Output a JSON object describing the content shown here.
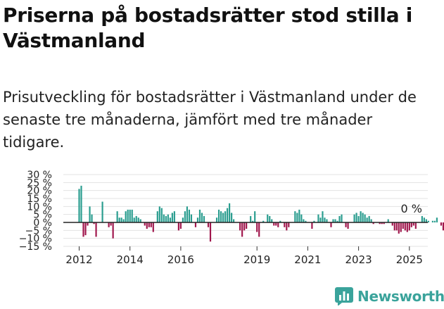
{
  "title": "Priserna på bostadsrätter stod stilla i Västmanland",
  "subtitle": "Prisutveckling för bostadsrätter i Västmanland under de senaste tre månaderna, jämfört med tre månader tidigare.",
  "logo": {
    "text": "Newsworthy",
    "icon": "bar-chart-logo-icon"
  },
  "colors": {
    "positive": "#2a9d8f",
    "negative": "#a0164c",
    "grid": "#e3e3e3",
    "zero": "#222222"
  },
  "chart_data": {
    "type": "bar",
    "x_label_ticks": [
      "2012",
      "2014",
      "2016",
      "2019",
      "2021",
      "2023",
      "2025"
    ],
    "y_ticks": [
      "30 %",
      "25 %",
      "20 %",
      "15 %",
      "10 %",
      "5 %",
      "0 %",
      "−5 %",
      "−10 %",
      "−15 %"
    ],
    "y_tick_values": [
      30,
      25,
      20,
      15,
      10,
      5,
      0,
      -5,
      -10,
      -15
    ],
    "ylim": [
      -15,
      30
    ],
    "x_start": 2012.0,
    "period_months": 1,
    "grid": true,
    "annotation": "0 %",
    "values": [
      21,
      23,
      -9,
      -8,
      -2,
      10,
      5,
      -1,
      -9,
      0,
      0,
      13,
      0,
      0,
      -3,
      -2,
      -10,
      0,
      7,
      3,
      3,
      2,
      7,
      8,
      8,
      8,
      3,
      4,
      3,
      2,
      0,
      -2,
      -4,
      -3,
      -3,
      -6,
      0,
      7,
      10,
      9,
      5,
      4,
      5,
      3,
      6,
      7,
      0,
      -5,
      -4,
      3,
      7,
      10,
      8,
      5,
      0,
      -3,
      3,
      8,
      6,
      4,
      0,
      -3,
      -12,
      0,
      0,
      3,
      8,
      7,
      6,
      7,
      9,
      12,
      6,
      2,
      0,
      0,
      -5,
      -9,
      -5,
      -4,
      0,
      4,
      1,
      7,
      -6,
      -9,
      0,
      1,
      0,
      5,
      4,
      2,
      -2,
      -2,
      -3,
      1,
      0,
      -3,
      -5,
      -3,
      0,
      0,
      7,
      6,
      8,
      5,
      2,
      1,
      0,
      0,
      -4,
      1,
      0,
      5,
      3,
      7,
      3,
      2,
      0,
      -3,
      2,
      2,
      1,
      4,
      5,
      0,
      -3,
      -4,
      0,
      0,
      5,
      6,
      4,
      7,
      6,
      5,
      3,
      4,
      2,
      -1,
      0,
      0,
      -1,
      -1,
      -1,
      0,
      2,
      0,
      -2,
      -5,
      -5,
      -7,
      -6,
      -4,
      -5,
      -6,
      -5,
      -3,
      -2,
      -4,
      0,
      0,
      4,
      3,
      2,
      1,
      0,
      1,
      1,
      3,
      0,
      -2,
      -5,
      -5,
      -1,
      0,
      0,
      1,
      3,
      4,
      3,
      2,
      -4,
      -4,
      -4,
      -4
    ]
  }
}
